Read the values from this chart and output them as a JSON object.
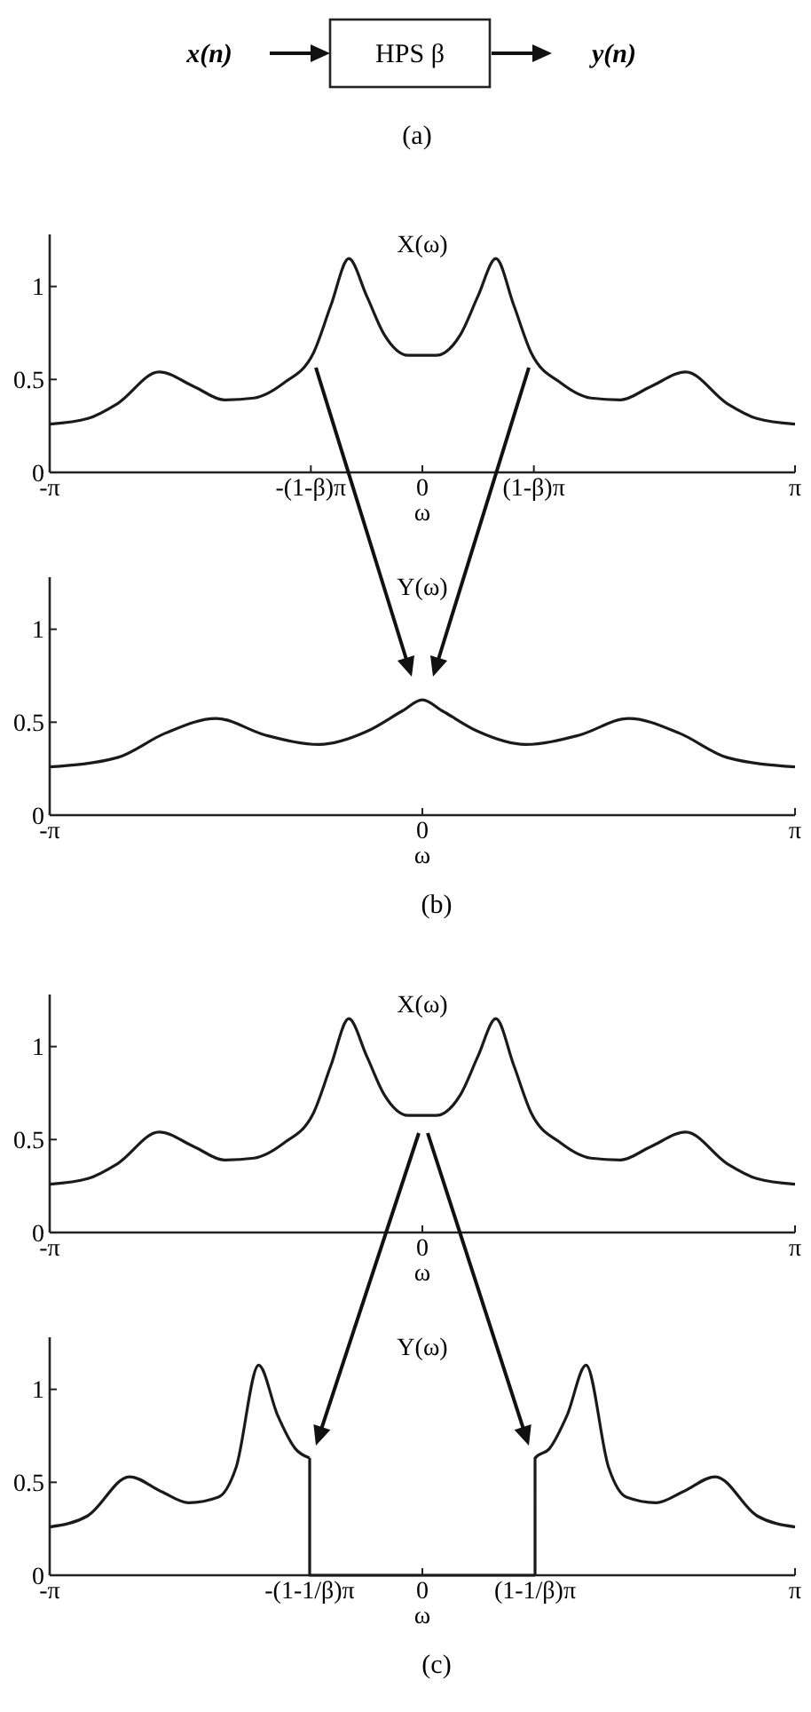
{
  "chart_data": [
    {
      "type": "other",
      "annotations": [
        "x(n)",
        "HPS β",
        "y(n)",
        "(a)"
      ]
    },
    {
      "type": "line",
      "title": "X(ω)",
      "xlabel": "ω",
      "color": "#1a1a1a",
      "x": [
        -3.1416,
        -2.82,
        -2.57,
        -2.22,
        -1.92,
        -1.67,
        -1.42,
        -1.17,
        -0.92,
        -0.77,
        -0.62,
        -0.47,
        -0.32,
        -0.12,
        0,
        0.12,
        0.32,
        0.47,
        0.62,
        0.77,
        0.92,
        1.17,
        1.42,
        1.67,
        1.92,
        2.22,
        2.57,
        2.82,
        3.1416
      ],
      "values": [
        0.26,
        0.29,
        0.37,
        0.54,
        0.46,
        0.39,
        0.4,
        0.48,
        0.64,
        0.9,
        1.15,
        0.95,
        0.74,
        0.63,
        0.63,
        0.63,
        0.74,
        0.95,
        1.15,
        0.9,
        0.64,
        0.48,
        0.4,
        0.39,
        0.46,
        0.54,
        0.37,
        0.29,
        0.26
      ],
      "xlim": [
        -3.1416,
        3.1416
      ],
      "ylim": [
        0,
        1.28
      ],
      "xticks": [
        {
          "value": -3.1416,
          "label": "-π"
        },
        {
          "value": -0.94,
          "label": "-(1-β)π"
        },
        {
          "value": 0,
          "label": "0"
        },
        {
          "value": 0.94,
          "label": "(1-β)π"
        },
        {
          "value": 3.1416,
          "label": "π"
        }
      ],
      "yticks": [
        0,
        0.5,
        1
      ]
    },
    {
      "type": "line",
      "title": "Y(ω)",
      "xlabel": "ω",
      "color": "#1a1a1a",
      "annotations": [
        "(b)"
      ],
      "x": [
        -3.1416,
        -2.57,
        -2.17,
        -1.74,
        -1.32,
        -0.87,
        -0.47,
        -0.17,
        0,
        0.17,
        0.47,
        0.87,
        1.32,
        1.74,
        2.17,
        2.57,
        3.1416
      ],
      "values": [
        0.26,
        0.31,
        0.44,
        0.52,
        0.43,
        0.38,
        0.45,
        0.56,
        0.62,
        0.56,
        0.45,
        0.38,
        0.43,
        0.52,
        0.44,
        0.31,
        0.26
      ],
      "xlim": [
        -3.1416,
        3.1416
      ],
      "ylim": [
        0,
        1.28
      ],
      "xticks": [
        {
          "value": -3.1416,
          "label": "-π"
        },
        0,
        {
          "value": 3.1416,
          "label": "π"
        }
      ],
      "yticks": [
        0,
        0.5,
        1
      ]
    },
    {
      "type": "line",
      "title": "X(ω)",
      "xlabel": "ω",
      "color": "#1a1a1a",
      "x": [
        -3.1416,
        -2.82,
        -2.57,
        -2.22,
        -1.92,
        -1.67,
        -1.42,
        -1.17,
        -0.92,
        -0.77,
        -0.62,
        -0.47,
        -0.32,
        -0.12,
        0,
        0.12,
        0.32,
        0.47,
        0.62,
        0.77,
        0.92,
        1.17,
        1.42,
        1.67,
        1.92,
        2.22,
        2.57,
        2.82,
        3.1416
      ],
      "values": [
        0.26,
        0.29,
        0.37,
        0.54,
        0.46,
        0.39,
        0.4,
        0.48,
        0.64,
        0.9,
        1.15,
        0.95,
        0.74,
        0.63,
        0.63,
        0.63,
        0.74,
        0.95,
        1.15,
        0.9,
        0.64,
        0.48,
        0.4,
        0.39,
        0.46,
        0.54,
        0.37,
        0.29,
        0.26
      ],
      "xlim": [
        -3.1416,
        3.1416
      ],
      "ylim": [
        0,
        1.28
      ],
      "xticks": [
        {
          "value": -3.1416,
          "label": "-π"
        },
        0,
        {
          "value": 3.1416,
          "label": "π"
        }
      ],
      "yticks": [
        0,
        0.5,
        1
      ]
    },
    {
      "type": "line",
      "title": "Y(ω)",
      "xlabel": "ω",
      "color": "#1a1a1a",
      "annotations": [
        "(c)"
      ],
      "x": [
        -3.1416,
        -2.82,
        -2.47,
        -2.2,
        -1.97,
        -1.72,
        -1.57,
        -1.38,
        -1.22,
        -1.07,
        -0.95,
        -0.95,
        0.95,
        0.95,
        1.07,
        1.22,
        1.38,
        1.57,
        1.72,
        1.97,
        2.2,
        2.47,
        2.82,
        3.1416
      ],
      "values": [
        0.26,
        0.32,
        0.53,
        0.45,
        0.39,
        0.42,
        0.58,
        1.13,
        0.86,
        0.68,
        0.63,
        0,
        0,
        0.63,
        0.68,
        0.86,
        1.13,
        0.58,
        0.42,
        0.39,
        0.45,
        0.53,
        0.32,
        0.26
      ],
      "xlim": [
        -3.1416,
        3.1416
      ],
      "ylim": [
        0,
        1.28
      ],
      "xticks": [
        {
          "value": -3.1416,
          "label": "-π"
        },
        {
          "value": -0.95,
          "label": "-(1-1/β)π"
        },
        {
          "value": 0,
          "label": "0"
        },
        {
          "value": 0.95,
          "label": "(1-1/β)π"
        },
        {
          "value": 3.1416,
          "label": "π"
        }
      ],
      "yticks": [
        0,
        0.5,
        1
      ]
    }
  ]
}
